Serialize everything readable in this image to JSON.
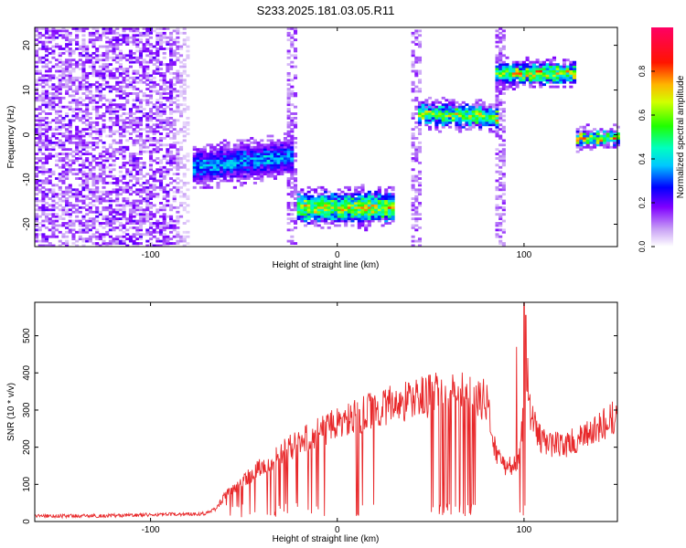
{
  "title": "S233.2025.181.03.05.R11",
  "chart_data": [
    {
      "type": "heatmap",
      "xlabel": "Height of straight line (km)",
      "ylabel": "Frequency (Hz)",
      "xlim": [
        -162,
        150
      ],
      "ylim": [
        -25,
        24
      ],
      "xticks": [
        -100,
        0,
        100
      ],
      "yticks": [
        -20,
        -10,
        0,
        10,
        20
      ],
      "colorbar": {
        "label": "Normalized spectral amplitude",
        "range": [
          0,
          1
        ],
        "ticks": [
          0.0,
          0.2,
          0.4,
          0.6,
          0.8
        ]
      },
      "noise_region": {
        "x": [
          -162,
          -78
        ],
        "y": [
          -25,
          24
        ]
      },
      "features": [
        {
          "x_start": -78,
          "x_end": -25,
          "freq": -7.5,
          "slope": 0.045,
          "width": 3.5,
          "peak": 0.48
        },
        {
          "x_start": -22,
          "x_end": 30,
          "freq": -16.5,
          "slope": 0.0,
          "width": 3.0,
          "peak": 0.85
        },
        {
          "x_start": 42,
          "x_end": 85,
          "freq": 4.5,
          "slope": -0.02,
          "width": 2.0,
          "peak": 0.85
        },
        {
          "x_start": 84,
          "x_end": 127,
          "freq": 13.5,
          "slope": 0.0,
          "width": 2.0,
          "peak": 0.85
        },
        {
          "x_start": 127,
          "x_end": 150,
          "freq": -1.0,
          "slope": 0.0,
          "width": 1.2,
          "peak": 0.95
        }
      ],
      "vertical_streaks": [
        -25,
        42,
        86
      ]
    },
    {
      "type": "line",
      "xlabel": "Height of straight line (km)",
      "ylabel": "SNR (10 * v/v)",
      "xlim": [
        -162,
        150
      ],
      "ylim": [
        0,
        590
      ],
      "xticks": [
        -100,
        0,
        100
      ],
      "yticks": [
        0,
        100,
        200,
        300,
        400,
        500
      ],
      "color": "#e8282a",
      "x": [
        -162,
        -130,
        -100,
        -80,
        -70,
        -65,
        -60,
        -50,
        -40,
        -30,
        -20,
        -10,
        0,
        10,
        20,
        30,
        40,
        50,
        60,
        70,
        75,
        80,
        85,
        90,
        95,
        98,
        100,
        102,
        105,
        110,
        120,
        130,
        140,
        150
      ],
      "y": [
        15,
        15,
        18,
        20,
        22,
        35,
        70,
        110,
        150,
        185,
        215,
        240,
        262,
        280,
        300,
        315,
        330,
        340,
        345,
        345,
        342,
        320,
        185,
        150,
        150,
        175,
        330,
        310,
        265,
        215,
        205,
        220,
        250,
        285
      ],
      "dropouts": [
        [
          -60,
          -5
        ],
        [
          10,
          20
        ],
        [
          50,
          75
        ],
        [
          97,
          103
        ]
      ],
      "spikes": [
        {
          "x": 96,
          "y": 470
        },
        {
          "x": 100,
          "y": 590
        },
        {
          "x": 101,
          "y": 555
        },
        {
          "x": 102,
          "y": 440
        }
      ]
    }
  ]
}
